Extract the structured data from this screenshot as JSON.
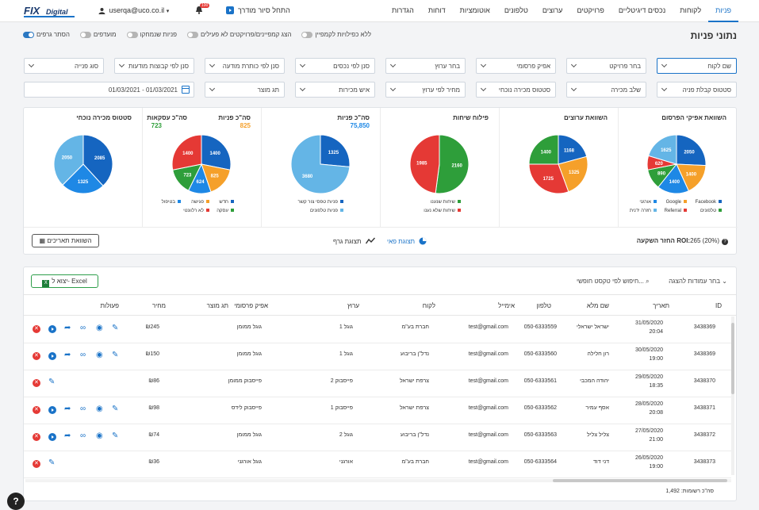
{
  "header": {
    "logo_text": "FIX Digital",
    "user": "userqa@uco.co.il",
    "notifications": "100",
    "tour": "התחל סיור מודרך",
    "nav": [
      "פניות",
      "לקוחות",
      "נכסים דיגיטליים",
      "פרויקטים",
      "ערוצים",
      "טלפונים",
      "אוטומציות",
      "דוחות",
      "הגדרות"
    ]
  },
  "page": {
    "title": "נתוני פניות",
    "toggles": [
      {
        "label": "ללא כפילויות לקמפיין",
        "on": false
      },
      {
        "label": "הצג קמפיינים/פרויקטים לא פעילים",
        "on": false
      },
      {
        "label": "פניות שנמחקו",
        "on": false
      },
      {
        "label": "מועדפים",
        "on": false
      },
      {
        "label": "הסתר גרפים",
        "on": true
      }
    ]
  },
  "filters": {
    "row1": [
      "שם לקוח",
      "בחר פרויקט",
      "אפיק פרסומי",
      "בחר ערוץ",
      "סנן לפי נכסים",
      "סנן לפי כותרת מודעה",
      "סנן לפי קבוצות מודעות",
      "סוג פנייה"
    ],
    "row2": [
      "סטטוס קבלת פניה",
      "שלב מכירה",
      "סטטוס מכירה נוכחי",
      "מחיר לפי ערוץ",
      "איש מכירות",
      "תג מוצר"
    ],
    "date_range": "01/03/2021 - 01/03/2021"
  },
  "charts": [
    {
      "title": "השוואת אפיקי הפרסום",
      "slices": [
        {
          "label": "Facebook",
          "value": 2050,
          "color": "#1565c0"
        },
        {
          "label": "Google",
          "value": 1400,
          "color": "#f5a02a"
        },
        {
          "label": "אורגני",
          "value": 1400,
          "color": "#1e88e5"
        },
        {
          "label": "טלפונים",
          "value": 890,
          "color": "#2e9e3a"
        },
        {
          "label": "Referral",
          "value": 620,
          "color": "#e53935"
        },
        {
          "label": "חזרה ידנית",
          "value": 1625,
          "color": "#64b5e6"
        }
      ]
    },
    {
      "title": "השוואת ערוצים",
      "slices": [
        {
          "label": "",
          "value": 1168,
          "color": "#1565c0"
        },
        {
          "label": "",
          "value": 1325,
          "color": "#f5a02a"
        },
        {
          "label": "",
          "value": 1725,
          "color": "#e53935"
        },
        {
          "label": "",
          "value": 1400,
          "color": "#2e9e3a"
        }
      ]
    },
    {
      "title": "פילוח שיחות",
      "slices": [
        {
          "label": "שיחות שנענו",
          "value": 2160,
          "color": "#2e9e3a"
        },
        {
          "label": "שיחות שלא נענו",
          "value": 1985,
          "color": "#e53935"
        }
      ]
    },
    {
      "title": "סה\"כ פניות",
      "total": "75,850",
      "slices": [
        {
          "label": "פניות טפסי צור קשר",
          "value": 1325,
          "color": "#1565c0"
        },
        {
          "label": "פניות טלפונים",
          "value": 3680,
          "color": "#64b5e6"
        }
      ]
    },
    {
      "title": "סה\"כ פניות",
      "total": "825",
      "title2": "סה\"כ עסקאות",
      "total2": "723",
      "slices": [
        {
          "label": "חדש",
          "value": 1400,
          "color": "#1565c0"
        },
        {
          "label": "פגישה",
          "value": 825,
          "color": "#f5a02a"
        },
        {
          "label": "בטיפול",
          "value": 624,
          "color": "#1e88e5"
        },
        {
          "label": "עסקה",
          "value": 723,
          "color": "#2e9e3a"
        },
        {
          "label": "לא רלוונטי",
          "value": 1400,
          "color": "#e53935"
        }
      ]
    },
    {
      "title": "סטטוס מכירה נוכחי",
      "slices": [
        {
          "label": "",
          "value": 2085,
          "color": "#1565c0"
        },
        {
          "label": "",
          "value": 1325,
          "color": "#1e88e5"
        },
        {
          "label": "",
          "value": 2050,
          "color": "#64b5e6"
        }
      ]
    }
  ],
  "chart_footer": {
    "roi_label": "החזר השקעה ROI:",
    "roi_value": "265 (20%)",
    "pie_view": "תצוגת פאי",
    "graph_view": "תצוגת גרף",
    "compare": "השוואת תאריכים"
  },
  "table": {
    "excel": "יצוא ל- Excel",
    "search_placeholder": "חיפוש לפי טקסט חופשי...",
    "columns_select": "בחר עמודות להצגה",
    "headers": [
      "ID",
      "תאריך",
      "שם מלא",
      "טלפון",
      "אימייל",
      "לקוח",
      "ערוץ",
      "אפיק פרסומי",
      "תג מוצר",
      "מחיר",
      "פעולות"
    ],
    "rows": [
      {
        "id": "3438369",
        "date": "31/05/2020",
        "time": "20:04",
        "name": "ישראל ישראלי",
        "phone": "050-6333559",
        "email": "test@gmail.com",
        "client": "חברת בע\"מ",
        "channel": "גוגל 1",
        "source": "גוגל ממומן",
        "tag": "",
        "price": "₪245",
        "full_actions": true
      },
      {
        "id": "3438369",
        "date": "30/05/2020",
        "time": "19:00",
        "name": "רון חלילה",
        "phone": "050-6333560",
        "email": "test@gmail.com",
        "client": "נדל\"ן בריבוע",
        "channel": "גוגל 1",
        "source": "גוגל ממומן",
        "tag": "",
        "price": "₪150",
        "full_actions": true
      },
      {
        "id": "3438370",
        "date": "29/05/2020",
        "time": "18:35",
        "name": "יהודה המכבי",
        "phone": "050-6333561",
        "email": "test@gmail.com",
        "client": "צרפת ישראל",
        "channel": "פייסבוק 2",
        "source": "פייסבוק ממומן",
        "tag": "",
        "price": "₪86",
        "full_actions": false
      },
      {
        "id": "3438371",
        "date": "28/05/2020",
        "time": "20:08",
        "name": "אסף עמיר",
        "phone": "050-6333562",
        "email": "test@gmail.com",
        "client": "צרפת ישראל",
        "channel": "פייסבוק 1",
        "source": "פייסבוק לידס",
        "tag": "",
        "price": "₪98",
        "full_actions": true
      },
      {
        "id": "3438372",
        "date": "27/05/2020",
        "time": "21:00",
        "name": "צליל צליל",
        "phone": "050-6333563",
        "email": "test@gmail.com",
        "client": "נדל\"ן בריבוע",
        "channel": "גוגל 2",
        "source": "גוגל ממומן",
        "tag": "",
        "price": "₪74",
        "full_actions": true
      },
      {
        "id": "3438373",
        "date": "26/05/2020",
        "time": "19:00",
        "name": "דני דוד",
        "phone": "050-6333564",
        "email": "test@gmail.com",
        "client": "חברת בע\"מ",
        "channel": "אורגני",
        "source": "גוגל אורגני",
        "tag": "",
        "price": "₪36",
        "full_actions": false
      }
    ],
    "total": "סה\"כ רשומות: 1,492"
  }
}
